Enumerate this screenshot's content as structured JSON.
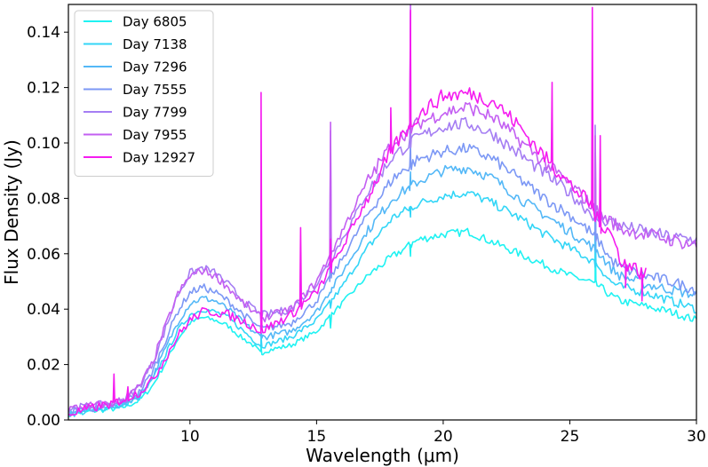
{
  "chart_data": {
    "type": "line",
    "title": "",
    "xlabel": "Wavelength (μm)",
    "ylabel": "Flux Density (Jy)",
    "xlim": [
      5.2,
      30
    ],
    "ylim": [
      0,
      0.15
    ],
    "xticks": [
      10,
      15,
      20,
      25,
      30
    ],
    "xtick_labels": [
      "10",
      "15",
      "20",
      "25",
      "30"
    ],
    "yticks": [
      0,
      0.02,
      0.04,
      0.06,
      0.08,
      0.1,
      0.12,
      0.14
    ],
    "ytick_labels": [
      "0.00",
      "0.02",
      "0.04",
      "0.06",
      "0.08",
      "0.10",
      "0.12",
      "0.14"
    ],
    "grid": false,
    "legend_position": "top-left",
    "series": [
      {
        "name": "Day 6805",
        "color": "#1ff2f2",
        "points": [
          [
            5.2,
            0.002
          ],
          [
            6,
            0.003
          ],
          [
            7,
            0.004
          ],
          [
            7.5,
            0.005
          ],
          [
            8,
            0.007
          ],
          [
            8.5,
            0.012
          ],
          [
            9,
            0.02
          ],
          [
            9.5,
            0.029
          ],
          [
            10,
            0.035
          ],
          [
            10.5,
            0.037
          ],
          [
            11,
            0.036
          ],
          [
            11.5,
            0.034
          ],
          [
            12,
            0.03
          ],
          [
            12.5,
            0.027
          ],
          [
            12.8,
            0.024
          ],
          [
            13,
            0.025
          ],
          [
            14,
            0.027
          ],
          [
            15,
            0.032
          ],
          [
            16,
            0.042
          ],
          [
            17,
            0.052
          ],
          [
            18,
            0.059
          ],
          [
            19,
            0.065
          ],
          [
            20,
            0.067
          ],
          [
            21,
            0.068
          ],
          [
            22,
            0.064
          ],
          [
            23,
            0.06
          ],
          [
            24,
            0.056
          ],
          [
            25,
            0.052
          ],
          [
            25.8,
            0.05
          ],
          [
            26.2,
            0.048
          ],
          [
            26.6,
            0.045
          ],
          [
            27,
            0.043
          ],
          [
            28,
            0.041
          ],
          [
            29,
            0.039
          ],
          [
            30,
            0.036
          ]
        ],
        "peaks": [
          [
            7.2,
            0.004
          ],
          [
            12.81,
            0.026
          ],
          [
            15.55,
            0.034
          ],
          [
            18.71,
            0.06
          ],
          [
            26.0,
            0.07
          ]
        ]
      },
      {
        "name": "Day 7138",
        "color": "#33d6f7",
        "points": [
          [
            5.2,
            0.002
          ],
          [
            6,
            0.003
          ],
          [
            7,
            0.005
          ],
          [
            7.5,
            0.006
          ],
          [
            8,
            0.008
          ],
          [
            8.5,
            0.014
          ],
          [
            9,
            0.023
          ],
          [
            9.5,
            0.032
          ],
          [
            10,
            0.038
          ],
          [
            10.5,
            0.04
          ],
          [
            11,
            0.039
          ],
          [
            11.5,
            0.037
          ],
          [
            12,
            0.033
          ],
          [
            12.5,
            0.029
          ],
          [
            12.8,
            0.027
          ],
          [
            13,
            0.027
          ],
          [
            14,
            0.03
          ],
          [
            15,
            0.036
          ],
          [
            16,
            0.048
          ],
          [
            17,
            0.062
          ],
          [
            18,
            0.073
          ],
          [
            19,
            0.078
          ],
          [
            20,
            0.081
          ],
          [
            21,
            0.082
          ],
          [
            22,
            0.078
          ],
          [
            23,
            0.073
          ],
          [
            24,
            0.067
          ],
          [
            25,
            0.062
          ],
          [
            25.8,
            0.058
          ],
          [
            26.2,
            0.055
          ],
          [
            26.6,
            0.05
          ],
          [
            27,
            0.048
          ],
          [
            28,
            0.046
          ],
          [
            29,
            0.043
          ],
          [
            30,
            0.04
          ]
        ],
        "peaks": [
          [
            12.81,
            0.03
          ],
          [
            15.55,
            0.04
          ],
          [
            18.71,
            0.073
          ],
          [
            26.0,
            0.08
          ]
        ]
      },
      {
        "name": "Day 7296",
        "color": "#54b8f7",
        "points": [
          [
            5.2,
            0.003
          ],
          [
            6,
            0.004
          ],
          [
            7,
            0.005
          ],
          [
            7.5,
            0.006
          ],
          [
            8,
            0.009
          ],
          [
            8.5,
            0.015
          ],
          [
            9,
            0.025
          ],
          [
            9.5,
            0.035
          ],
          [
            10,
            0.042
          ],
          [
            10.5,
            0.044
          ],
          [
            11,
            0.043
          ],
          [
            11.5,
            0.04
          ],
          [
            12,
            0.036
          ],
          [
            12.5,
            0.032
          ],
          [
            12.8,
            0.03
          ],
          [
            13,
            0.03
          ],
          [
            14,
            0.032
          ],
          [
            15,
            0.039
          ],
          [
            16,
            0.053
          ],
          [
            17,
            0.068
          ],
          [
            18,
            0.08
          ],
          [
            19,
            0.086
          ],
          [
            20,
            0.09
          ],
          [
            21,
            0.091
          ],
          [
            22,
            0.087
          ],
          [
            23,
            0.08
          ],
          [
            24,
            0.074
          ],
          [
            25,
            0.068
          ],
          [
            25.8,
            0.063
          ],
          [
            26.2,
            0.06
          ],
          [
            26.6,
            0.055
          ],
          [
            27,
            0.052
          ],
          [
            28,
            0.049
          ],
          [
            29,
            0.047
          ],
          [
            30,
            0.045
          ]
        ],
        "peaks": [
          [
            12.81,
            0.033
          ],
          [
            15.55,
            0.047
          ],
          [
            18.71,
            0.088
          ],
          [
            26.0,
            0.088
          ]
        ]
      },
      {
        "name": "Day 7555",
        "color": "#7c98f5",
        "points": [
          [
            5.2,
            0.003
          ],
          [
            6,
            0.004
          ],
          [
            7,
            0.005
          ],
          [
            7.5,
            0.007
          ],
          [
            8,
            0.01
          ],
          [
            8.5,
            0.017
          ],
          [
            9,
            0.028
          ],
          [
            9.5,
            0.039
          ],
          [
            10,
            0.046
          ],
          [
            10.5,
            0.048
          ],
          [
            11,
            0.046
          ],
          [
            11.5,
            0.043
          ],
          [
            12,
            0.039
          ],
          [
            12.5,
            0.035
          ],
          [
            12.8,
            0.033
          ],
          [
            13,
            0.033
          ],
          [
            14,
            0.035
          ],
          [
            15,
            0.043
          ],
          [
            16,
            0.058
          ],
          [
            17,
            0.074
          ],
          [
            18,
            0.087
          ],
          [
            19,
            0.094
          ],
          [
            20,
            0.097
          ],
          [
            21,
            0.098
          ],
          [
            22,
            0.094
          ],
          [
            23,
            0.087
          ],
          [
            24,
            0.08
          ],
          [
            25,
            0.074
          ],
          [
            25.8,
            0.068
          ],
          [
            26.2,
            0.064
          ],
          [
            26.6,
            0.058
          ],
          [
            27,
            0.055
          ],
          [
            28,
            0.052
          ],
          [
            29,
            0.05
          ],
          [
            30,
            0.047
          ]
        ],
        "peaks": [
          [
            12.81,
            0.036
          ],
          [
            15.55,
            0.088
          ],
          [
            18.71,
            0.1
          ],
          [
            26.0,
            0.095
          ]
        ]
      },
      {
        "name": "Day 7799",
        "color": "#a57ef3",
        "points": [
          [
            5.2,
            0.004
          ],
          [
            6,
            0.005
          ],
          [
            7,
            0.006
          ],
          [
            7.5,
            0.008
          ],
          [
            8,
            0.012
          ],
          [
            8.5,
            0.02
          ],
          [
            9,
            0.032
          ],
          [
            9.5,
            0.045
          ],
          [
            10,
            0.053
          ],
          [
            10.5,
            0.055
          ],
          [
            11,
            0.053
          ],
          [
            11.5,
            0.049
          ],
          [
            12,
            0.044
          ],
          [
            12.5,
            0.04
          ],
          [
            12.8,
            0.038
          ],
          [
            13,
            0.038
          ],
          [
            14,
            0.04
          ],
          [
            15,
            0.049
          ],
          [
            16,
            0.065
          ],
          [
            17,
            0.082
          ],
          [
            18,
            0.095
          ],
          [
            19,
            0.102
          ],
          [
            20,
            0.106
          ],
          [
            21,
            0.107
          ],
          [
            22,
            0.103
          ],
          [
            23,
            0.096
          ],
          [
            24,
            0.089
          ],
          [
            25,
            0.082
          ],
          [
            25.8,
            0.075
          ],
          [
            26.2,
            0.072
          ],
          [
            26.6,
            0.072
          ],
          [
            27,
            0.07
          ],
          [
            28,
            0.068
          ],
          [
            29,
            0.066
          ],
          [
            30,
            0.065
          ]
        ],
        "peaks": [
          [
            12.81,
            0.04
          ],
          [
            15.55,
            0.104
          ],
          [
            18.71,
            0.146
          ],
          [
            26.0,
            0.105
          ]
        ]
      },
      {
        "name": "Day 7955",
        "color": "#c35ff2",
        "points": [
          [
            5.2,
            0.004
          ],
          [
            6,
            0.005
          ],
          [
            7,
            0.006
          ],
          [
            7.5,
            0.008
          ],
          [
            8,
            0.012
          ],
          [
            8.5,
            0.02
          ],
          [
            9,
            0.033
          ],
          [
            9.5,
            0.045
          ],
          [
            10,
            0.052
          ],
          [
            10.5,
            0.054
          ],
          [
            11,
            0.052
          ],
          [
            11.5,
            0.048
          ],
          [
            12,
            0.043
          ],
          [
            12.5,
            0.039
          ],
          [
            12.8,
            0.037
          ],
          [
            13,
            0.037
          ],
          [
            14,
            0.04
          ],
          [
            15,
            0.05
          ],
          [
            16,
            0.068
          ],
          [
            17,
            0.086
          ],
          [
            18,
            0.1
          ],
          [
            19,
            0.107
          ],
          [
            20,
            0.111
          ],
          [
            21,
            0.113
          ],
          [
            22,
            0.109
          ],
          [
            23,
            0.101
          ],
          [
            24,
            0.093
          ],
          [
            25,
            0.085
          ],
          [
            25.8,
            0.078
          ],
          [
            26.2,
            0.074
          ],
          [
            26.6,
            0.072
          ],
          [
            27,
            0.069
          ],
          [
            28,
            0.067
          ],
          [
            29,
            0.065
          ],
          [
            30,
            0.063
          ]
        ],
        "peaks": [
          [
            12.81,
            0.04
          ],
          [
            15.55,
            0.106
          ],
          [
            18.71,
            0.15
          ],
          [
            26.0,
            0.105
          ]
        ]
      },
      {
        "name": "Day 12927",
        "color": "#f51cf0",
        "points": [
          [
            5.2,
            0.002
          ],
          [
            6,
            0.004
          ],
          [
            7,
            0.006
          ],
          [
            7.5,
            0.008
          ],
          [
            8,
            0.01
          ],
          [
            8.5,
            0.014
          ],
          [
            9,
            0.022
          ],
          [
            9.5,
            0.03
          ],
          [
            10,
            0.036
          ],
          [
            10.5,
            0.039
          ],
          [
            11,
            0.039
          ],
          [
            11.5,
            0.038
          ],
          [
            12,
            0.036
          ],
          [
            12.5,
            0.034
          ],
          [
            12.8,
            0.032
          ],
          [
            13,
            0.033
          ],
          [
            14,
            0.038
          ],
          [
            15,
            0.046
          ],
          [
            16,
            0.062
          ],
          [
            17,
            0.08
          ],
          [
            18,
            0.098
          ],
          [
            19,
            0.11
          ],
          [
            20,
            0.117
          ],
          [
            21,
            0.118
          ],
          [
            22,
            0.115
          ],
          [
            23,
            0.106
          ],
          [
            24,
            0.095
          ],
          [
            25,
            0.085
          ],
          [
            25.8,
            0.078
          ],
          [
            26.2,
            0.07
          ],
          [
            26.6,
            0.068
          ],
          [
            27,
            0.058
          ],
          [
            27.5,
            0.055
          ],
          [
            28,
            0.052
          ]
        ],
        "peaks": [
          [
            7.0,
            0.016
          ],
          [
            7.55,
            0.012
          ],
          [
            12.81,
            0.118
          ],
          [
            14.37,
            0.069
          ],
          [
            15.55,
            0.065
          ],
          [
            17.93,
            0.11
          ],
          [
            18.71,
            0.15
          ],
          [
            24.3,
            0.124
          ],
          [
            25.89,
            0.15
          ],
          [
            26.2,
            0.105
          ],
          [
            27.2,
            0.046
          ],
          [
            27.85,
            0.043
          ]
        ]
      }
    ]
  }
}
